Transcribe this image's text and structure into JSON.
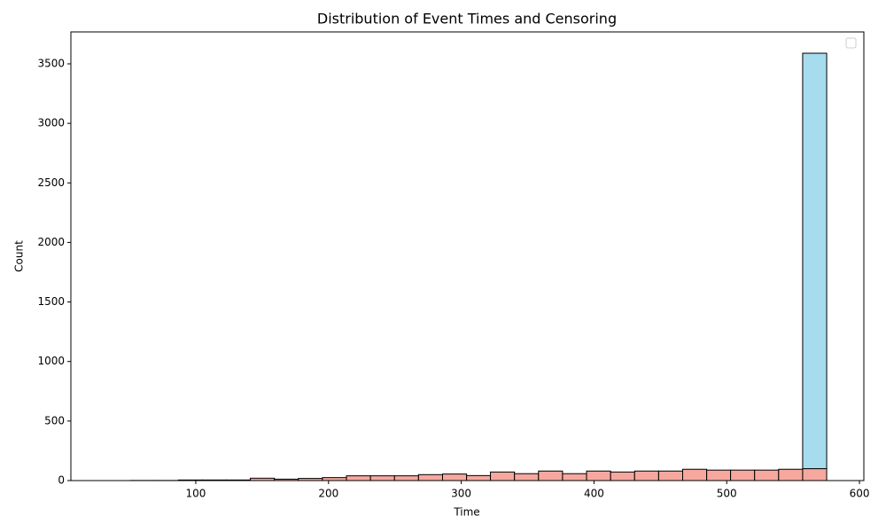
{
  "chart_data": {
    "type": "histogram",
    "title": "Distribution of Event Times and Censoring",
    "xlabel": "Time",
    "ylabel": "Count",
    "bins": [
      32.6,
      50.7,
      68.8,
      86.9,
      105.0,
      123.1,
      141.1,
      159.2,
      177.3,
      195.4,
      213.5,
      231.6,
      249.7,
      267.8,
      285.9,
      304.0,
      322.0,
      340.1,
      358.2,
      376.3,
      394.4,
      412.5,
      430.6,
      448.7,
      466.8,
      484.9,
      502.9,
      521.0,
      539.1,
      557.2,
      575.3
    ],
    "series": [
      {
        "color": "#f6a89e",
        "values": [
          0,
          1,
          1,
          5,
          5,
          5,
          20,
          12,
          18,
          25,
          40,
          40,
          40,
          50,
          55,
          42,
          72,
          58,
          80,
          58,
          80,
          72,
          80,
          80,
          95,
          88,
          88,
          88,
          95,
          100
        ]
      },
      {
        "color": "#a7dcef",
        "values": [
          0,
          0,
          0,
          0,
          0,
          0,
          0,
          0,
          0,
          0,
          0,
          0,
          0,
          0,
          0,
          0,
          0,
          0,
          0,
          0,
          0,
          0,
          0,
          0,
          0,
          0,
          0,
          0,
          0,
          3489
        ]
      }
    ],
    "stacked": true,
    "xlim": [
      5.9,
      603.3
    ],
    "ylim": [
      0,
      3768
    ],
    "xticks": [
      100,
      200,
      300,
      400,
      500,
      600
    ],
    "yticks": [
      0,
      500,
      1000,
      1500,
      2000,
      2500,
      3000,
      3500
    ],
    "legend": "upper right"
  }
}
